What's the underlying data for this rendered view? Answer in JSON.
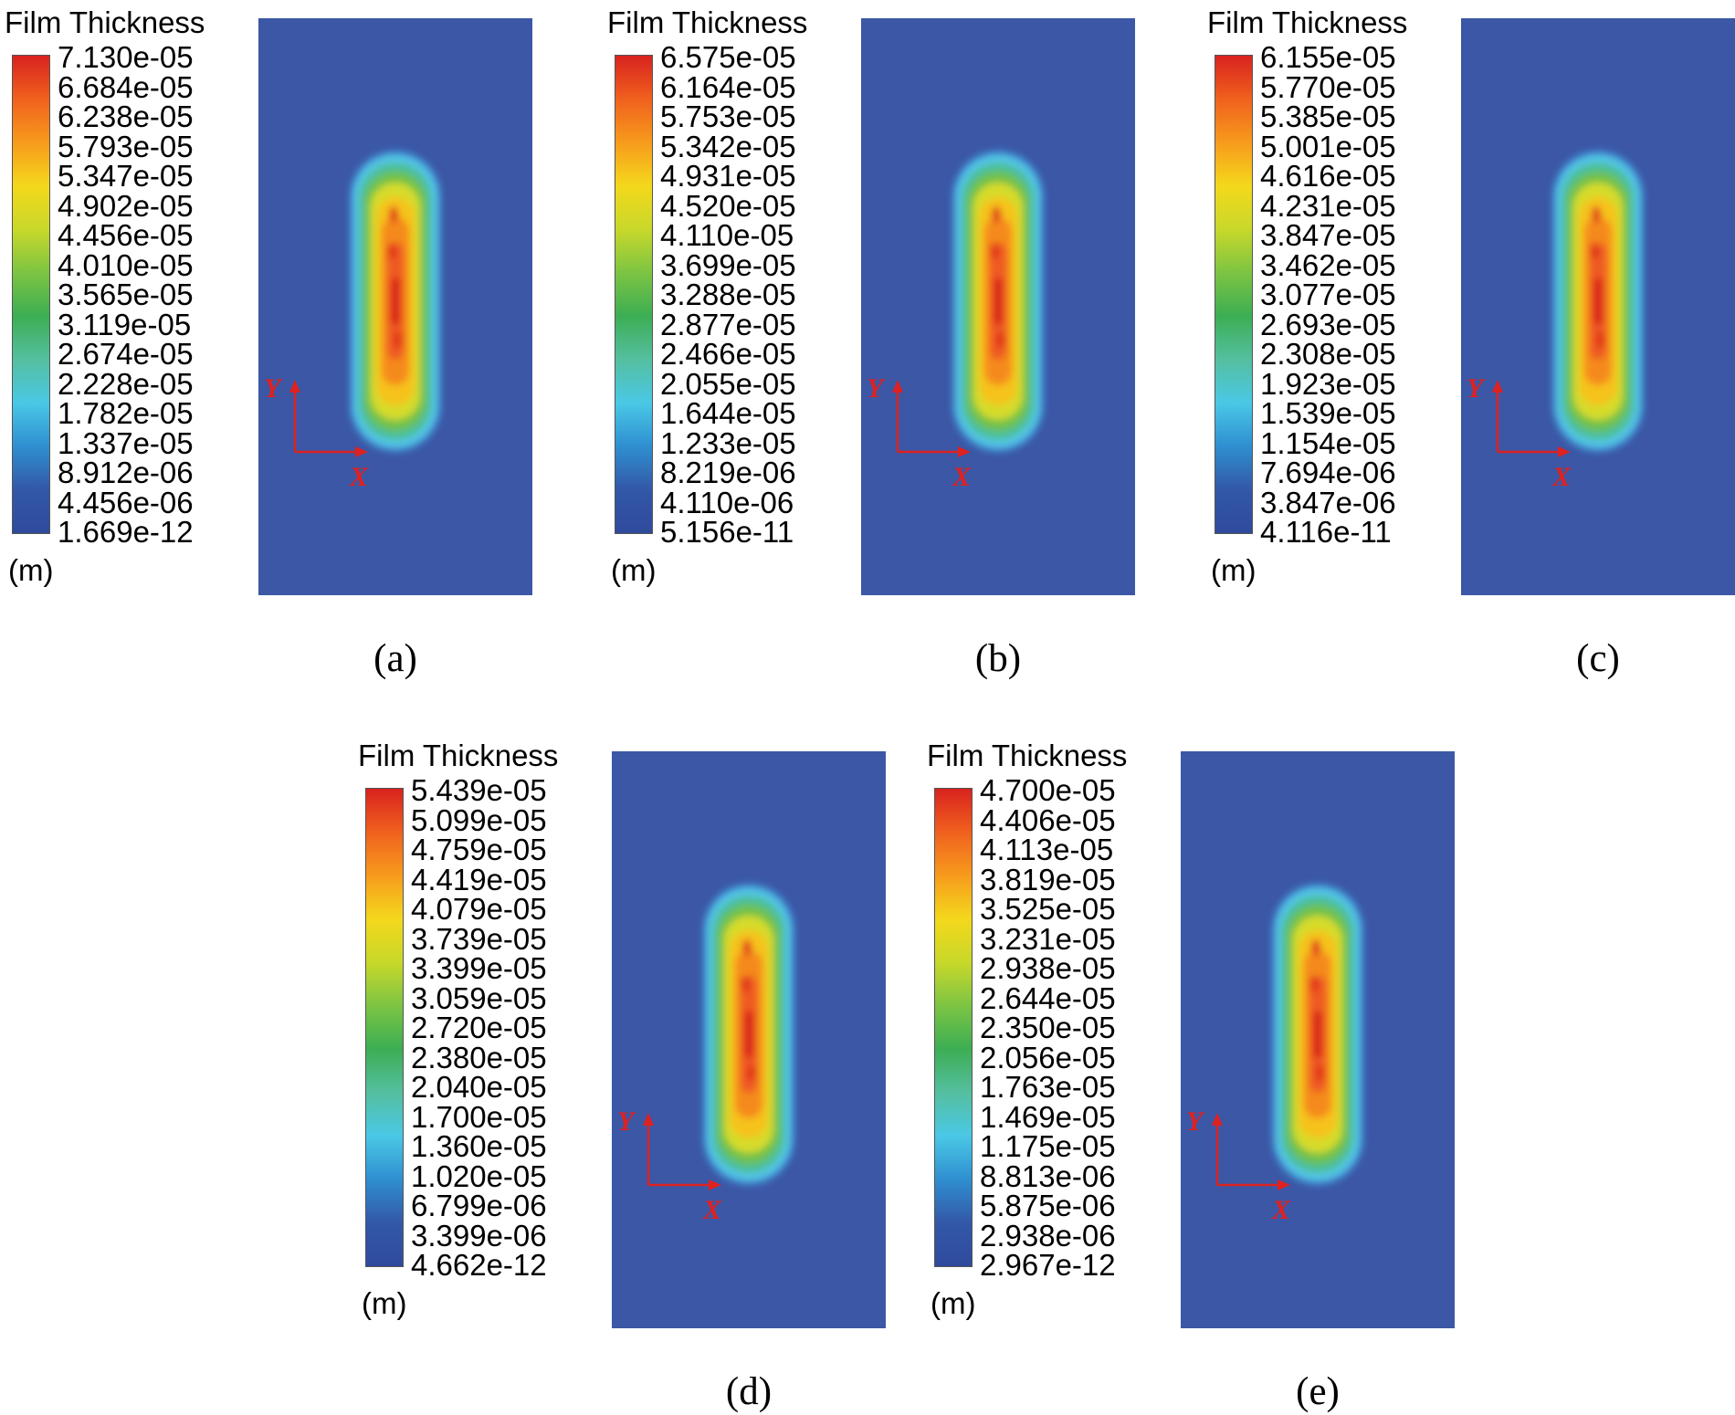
{
  "chart_data": [
    {
      "type": "heatmap",
      "panel_label": "(a)",
      "title": "Film Thickness",
      "unit": "(m)",
      "legend_ticks": [
        "7.130e-05",
        "6.684e-05",
        "6.238e-05",
        "5.793e-05",
        "5.347e-05",
        "4.902e-05",
        "4.456e-05",
        "4.010e-05",
        "3.565e-05",
        "3.119e-05",
        "2.674e-05",
        "2.228e-05",
        "1.782e-05",
        "1.337e-05",
        "8.912e-06",
        "4.456e-06",
        "1.669e-12"
      ],
      "axis_labels": {
        "x": "X",
        "y": "Y"
      }
    },
    {
      "type": "heatmap",
      "panel_label": "(b)",
      "title": "Film Thickness",
      "unit": "(m)",
      "legend_ticks": [
        "6.575e-05",
        "6.164e-05",
        "5.753e-05",
        "5.342e-05",
        "4.931e-05",
        "4.520e-05",
        "4.110e-05",
        "3.699e-05",
        "3.288e-05",
        "2.877e-05",
        "2.466e-05",
        "2.055e-05",
        "1.644e-05",
        "1.233e-05",
        "8.219e-06",
        "4.110e-06",
        "5.156e-11"
      ],
      "axis_labels": {
        "x": "X",
        "y": "Y"
      }
    },
    {
      "type": "heatmap",
      "panel_label": "(c)",
      "title": "Film Thickness",
      "unit": "(m)",
      "legend_ticks": [
        "6.155e-05",
        "5.770e-05",
        "5.385e-05",
        "5.001e-05",
        "4.616e-05",
        "4.231e-05",
        "3.847e-05",
        "3.462e-05",
        "3.077e-05",
        "2.693e-05",
        "2.308e-05",
        "1.923e-05",
        "1.539e-05",
        "1.154e-05",
        "7.694e-06",
        "3.847e-06",
        "4.116e-11"
      ],
      "axis_labels": {
        "x": "X",
        "y": "Y"
      }
    },
    {
      "type": "heatmap",
      "panel_label": "(d)",
      "title": "Film Thickness",
      "unit": "(m)",
      "legend_ticks": [
        "5.439e-05",
        "5.099e-05",
        "4.759e-05",
        "4.419e-05",
        "4.079e-05",
        "3.739e-05",
        "3.399e-05",
        "3.059e-05",
        "2.720e-05",
        "2.380e-05",
        "2.040e-05",
        "1.700e-05",
        "1.360e-05",
        "1.020e-05",
        "6.799e-06",
        "3.399e-06",
        "4.662e-12"
      ],
      "axis_labels": {
        "x": "X",
        "y": "Y"
      }
    },
    {
      "type": "heatmap",
      "panel_label": "(e)",
      "title": "Film Thickness",
      "unit": "(m)",
      "legend_ticks": [
        "4.700e-05",
        "4.406e-05",
        "4.113e-05",
        "3.819e-05",
        "3.525e-05",
        "3.231e-05",
        "2.938e-05",
        "2.644e-05",
        "2.350e-05",
        "2.056e-05",
        "1.763e-05",
        "1.469e-05",
        "1.175e-05",
        "8.813e-06",
        "5.875e-06",
        "2.938e-06",
        "2.967e-12"
      ],
      "axis_labels": {
        "x": "X",
        "y": "Y"
      }
    }
  ],
  "colors": {
    "background_field": "#3b57a6",
    "axis_arrow": "#dd2222",
    "scale": [
      "#d8221f",
      "#f0611e",
      "#f79b1c",
      "#f4d81c",
      "#c8d82a",
      "#7cc443",
      "#3cae53",
      "#55bfa0",
      "#4ac8e6",
      "#2f8fd0",
      "#3358a8",
      "#2f4a9c"
    ]
  }
}
